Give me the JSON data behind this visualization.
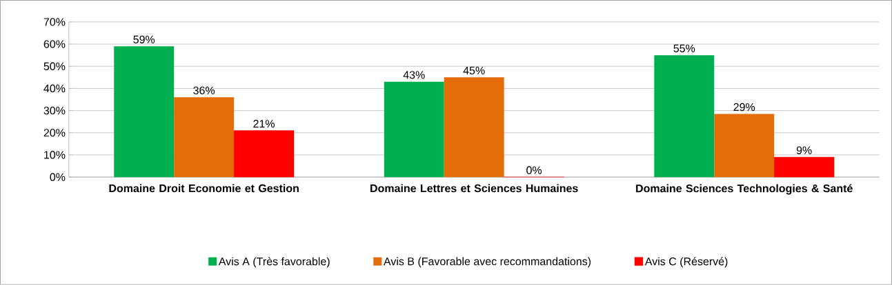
{
  "chart_data": {
    "type": "bar",
    "categories": [
      "Domaine Droit Economie et Gestion",
      "Domaine Lettres et Sciences Humaines",
      "Domaine Sciences Technologies & Santé"
    ],
    "series": [
      {
        "name": "Avis A (Très favorable)",
        "color": "#00b050",
        "values": [
          59,
          43,
          55
        ],
        "value_labels": [
          "59%",
          "43%",
          "55%"
        ]
      },
      {
        "name": "Avis B (Favorable avec recommandations)",
        "color": "#e46c0a",
        "values": [
          36,
          45,
          28.5
        ],
        "value_labels": [
          "36%",
          "45%",
          "29%"
        ]
      },
      {
        "name": "Avis C (Réservé)",
        "color": "#ff0000",
        "values": [
          21,
          0,
          9
        ],
        "value_labels": [
          "21%",
          "0%",
          "9%"
        ]
      }
    ],
    "ylim": [
      0,
      70
    ],
    "yticks": [
      {
        "value": 0,
        "label": "0%"
      },
      {
        "value": 10,
        "label": "10%"
      },
      {
        "value": 20,
        "label": "20%"
      },
      {
        "value": 30,
        "label": "30%"
      },
      {
        "value": 40,
        "label": "40%"
      },
      {
        "value": 50,
        "label": "50%"
      },
      {
        "value": 60,
        "label": "60%"
      },
      {
        "value": 70,
        "label": "70%"
      }
    ],
    "grid": "y",
    "legend": "bottom"
  }
}
